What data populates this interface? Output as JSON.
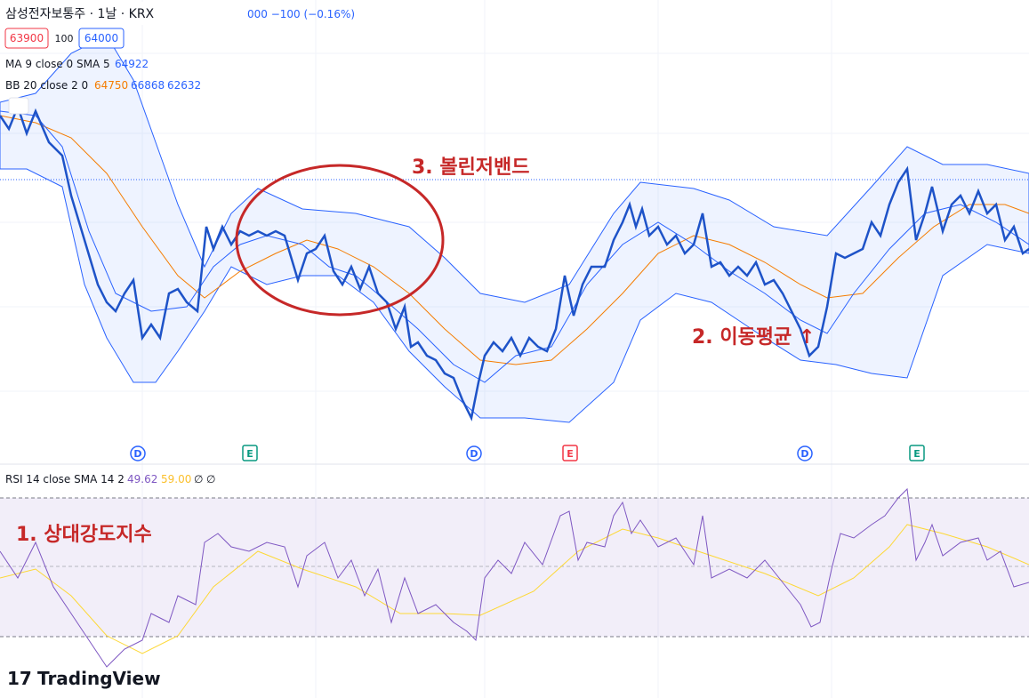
{
  "header": {
    "symbol": "삼성전자보통주 · 1날 · KRX",
    "change": "000 −100 (−0.16%)",
    "bid": "63900",
    "spread": "100",
    "ask": "64000"
  },
  "indicators": {
    "ma": {
      "label": "MA 9 close 0 SMA 5",
      "value": "64922"
    },
    "bb": {
      "label": "BB 20 close 2 0",
      "basis": "64750",
      "upper": "66868",
      "lower": "62632"
    },
    "rsi": {
      "label": "RSI 14 close SMA 14 2",
      "value": "49.62",
      "sma": "59.00",
      "extra1": "∅",
      "extra2": "∅"
    }
  },
  "events": [
    "D",
    "E",
    "D",
    "E",
    "D",
    "E"
  ],
  "annotations": {
    "bollinger": "3. 볼린저밴드",
    "moving_average": "2. 이동평균 ↑",
    "rsi": "1. 상대강도지수"
  },
  "logo": "TradingView"
}
